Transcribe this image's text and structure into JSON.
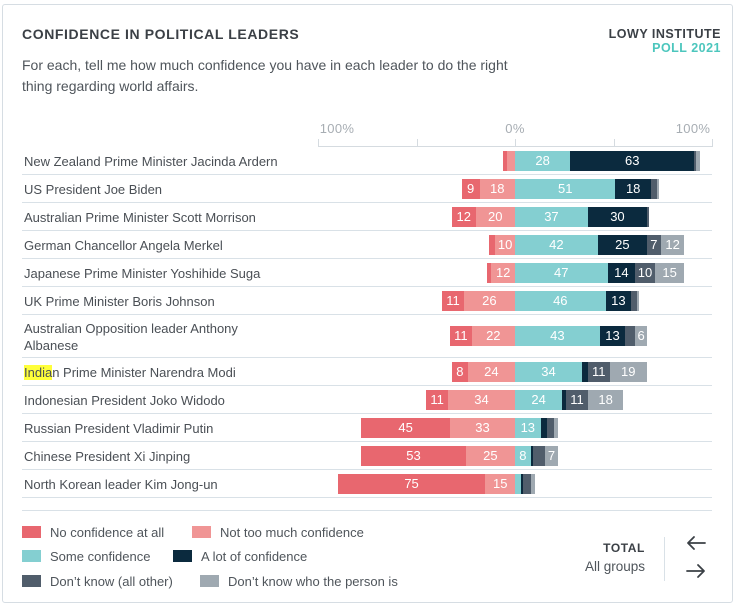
{
  "header": {
    "title": "CONFIDENCE IN POLITICAL LEADERS",
    "brand_line1": "LOWY INSTITUTE",
    "brand_line2": "POLL 2021",
    "subtitle": "For each, tell me how much confidence you have in each leader to do the right thing regarding world affairs."
  },
  "colors": {
    "no_confidence": "#e8676f",
    "not_too_much": "#f09595",
    "some": "#84cfd1",
    "a_lot": "#0b2a3e",
    "dk_other": "#505d6b",
    "dk_who": "#9fa9b1",
    "brand_accent": "#4cc6bd",
    "highlight": "#ffff3a"
  },
  "chart_data": {
    "type": "bar",
    "subtype": "diverging-stacked-horizontal",
    "title": "CONFIDENCE IN POLITICAL LEADERS",
    "axis": {
      "tick_labels": [
        "100%",
        "0%",
        "100%"
      ],
      "range": [
        -100,
        100
      ],
      "ticks": [
        -100,
        -50,
        0,
        50,
        100
      ]
    },
    "legend": {
      "placement": "bottom-left",
      "entries": [
        {
          "key": "no_confidence",
          "label": "No confidence at all"
        },
        {
          "key": "not_too_much",
          "label": "Not too much confidence"
        },
        {
          "key": "some",
          "label": "Some confidence"
        },
        {
          "key": "a_lot",
          "label": "A lot of confidence"
        },
        {
          "key": "dk_other",
          "label": "Don’t know (all other)"
        },
        {
          "key": "dk_who",
          "label": "Don’t know who the person is"
        }
      ]
    },
    "series_order_negative": [
      "not_too_much",
      "no_confidence"
    ],
    "series_order_positive": [
      "some",
      "a_lot",
      "dk_other",
      "dk_who"
    ],
    "rows": [
      {
        "label": "New Zealand Prime Minister Jacinda Ardern",
        "values": {
          "no_confidence": 2,
          "not_too_much": 4,
          "some": 28,
          "a_lot": 63,
          "dk_other": 1,
          "dk_who": 2
        },
        "labels_shown": [
          "some",
          "a_lot"
        ]
      },
      {
        "label": "US President Joe Biden",
        "values": {
          "no_confidence": 9,
          "not_too_much": 18,
          "some": 51,
          "a_lot": 18,
          "dk_other": 3,
          "dk_who": 1
        },
        "labels_shown": [
          "no_confidence",
          "not_too_much",
          "some",
          "a_lot"
        ]
      },
      {
        "label": "Australian Prime Minister Scott Morrison",
        "values": {
          "no_confidence": 12,
          "not_too_much": 20,
          "some": 37,
          "a_lot": 30,
          "dk_other": 1,
          "dk_who": 0
        },
        "labels_shown": [
          "no_confidence",
          "not_too_much",
          "some",
          "a_lot"
        ]
      },
      {
        "label": "German Chancellor Angela Merkel",
        "values": {
          "no_confidence": 3,
          "not_too_much": 10,
          "some": 42,
          "a_lot": 25,
          "dk_other": 7,
          "dk_who": 12
        },
        "labels_shown": [
          "not_too_much",
          "some",
          "a_lot",
          "dk_other",
          "dk_who"
        ]
      },
      {
        "label": "Japanese Prime Minister Yoshihide Suga",
        "values": {
          "no_confidence": 2,
          "not_too_much": 12,
          "some": 47,
          "a_lot": 14,
          "dk_other": 10,
          "dk_who": 15
        },
        "labels_shown": [
          "not_too_much",
          "some",
          "a_lot",
          "dk_other",
          "dk_who"
        ]
      },
      {
        "label": "UK Prime Minister Boris Johnson",
        "values": {
          "no_confidence": 11,
          "not_too_much": 26,
          "some": 46,
          "a_lot": 13,
          "dk_other": 3,
          "dk_who": 1
        },
        "labels_shown": [
          "no_confidence",
          "not_too_much",
          "some",
          "a_lot"
        ]
      },
      {
        "label": "Australian Opposition leader Anthony Albanese",
        "values": {
          "no_confidence": 11,
          "not_too_much": 22,
          "some": 43,
          "a_lot": 13,
          "dk_other": 5,
          "dk_who": 6
        },
        "labels_shown": [
          "no_confidence",
          "not_too_much",
          "some",
          "a_lot",
          "dk_who"
        ],
        "two_line": true
      },
      {
        "label_highlight": "India",
        "label_rest": "n Prime Minister Narendra Modi",
        "label": "Indian Prime Minister Narendra Modi",
        "values": {
          "no_confidence": 8,
          "not_too_much": 24,
          "some": 34,
          "a_lot": 3,
          "dk_other": 11,
          "dk_who": 19
        },
        "labels_shown": [
          "no_confidence",
          "not_too_much",
          "some",
          "dk_other",
          "dk_who"
        ]
      },
      {
        "label": "Indonesian President Joko Widodo",
        "values": {
          "no_confidence": 11,
          "not_too_much": 34,
          "some": 24,
          "a_lot": 2,
          "dk_other": 11,
          "dk_who": 18
        },
        "labels_shown": [
          "no_confidence",
          "not_too_much",
          "some",
          "dk_other",
          "dk_who"
        ]
      },
      {
        "label": "Russian President Vladimir Putin",
        "values": {
          "no_confidence": 45,
          "not_too_much": 33,
          "some": 13,
          "a_lot": 3,
          "dk_other": 4,
          "dk_who": 2
        },
        "labels_shown": [
          "no_confidence",
          "not_too_much",
          "some"
        ]
      },
      {
        "label": "Chinese President Xi Jinping",
        "values": {
          "no_confidence": 53,
          "not_too_much": 25,
          "some": 8,
          "a_lot": 1,
          "dk_other": 6,
          "dk_who": 7
        },
        "labels_shown": [
          "no_confidence",
          "not_too_much",
          "some",
          "dk_who"
        ]
      },
      {
        "label": "North Korean leader Kim Jong-un",
        "values": {
          "no_confidence": 75,
          "not_too_much": 15,
          "some": 3,
          "a_lot": 1,
          "dk_other": 4,
          "dk_who": 2
        },
        "labels_shown": [
          "no_confidence",
          "not_too_much"
        ]
      }
    ]
  },
  "footer": {
    "total_label": "TOTAL",
    "group_label": "All groups",
    "prev_icon": "arrow-left-icon",
    "next_icon": "arrow-right-icon"
  }
}
